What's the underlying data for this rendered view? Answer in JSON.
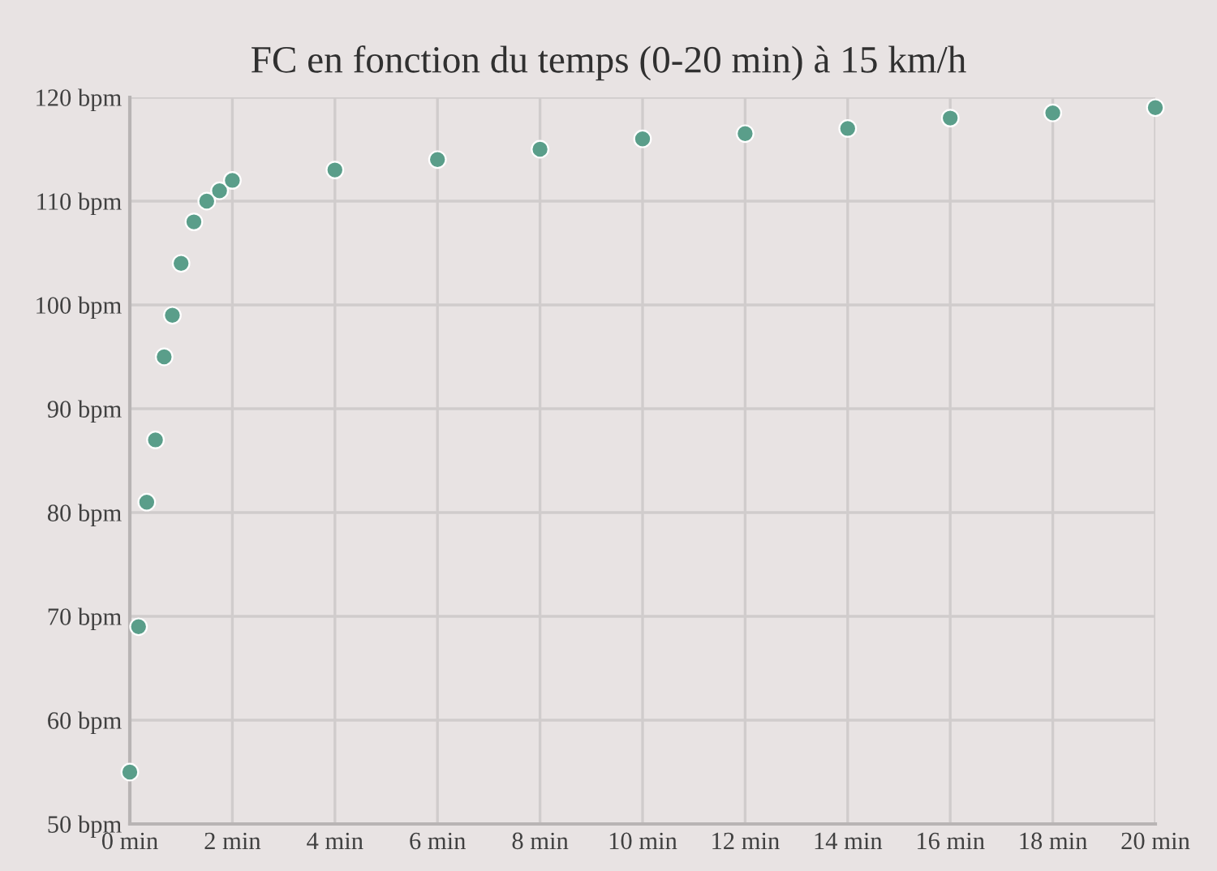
{
  "chart_data": {
    "type": "scatter",
    "title": "FC en fonction du temps (0-20 min) à 15 km/h",
    "x": [
      0,
      0.17,
      0.33,
      0.5,
      0.67,
      0.83,
      1,
      1.25,
      1.5,
      1.75,
      2,
      4,
      6,
      8,
      10,
      12,
      14,
      16,
      18,
      20
    ],
    "series": [
      {
        "color": "#5a9e8a",
        "values": [
          55,
          69,
          81,
          87,
          95,
          99,
          104,
          108,
          110,
          111,
          112,
          113,
          114,
          115,
          116,
          116.5,
          117,
          118,
          118.5,
          119
        ]
      }
    ],
    "xlim": [
      0,
      20
    ],
    "ylim": [
      50,
      120
    ],
    "xticks": [
      {
        "value": 0,
        "label": "0 min"
      },
      {
        "value": 2,
        "label": "2 min"
      },
      {
        "value": 4,
        "label": "4 min"
      },
      {
        "value": 6,
        "label": "6 min"
      },
      {
        "value": 8,
        "label": "8 min"
      },
      {
        "value": 10,
        "label": "10 min"
      },
      {
        "value": 12,
        "label": "12 min"
      },
      {
        "value": 14,
        "label": "14 min"
      },
      {
        "value": 16,
        "label": "16 min"
      },
      {
        "value": 18,
        "label": "18 min"
      },
      {
        "value": 20,
        "label": "20 min"
      }
    ],
    "yticks": [
      {
        "value": 50,
        "label": "50 bpm"
      },
      {
        "value": 60,
        "label": "60 bpm"
      },
      {
        "value": 70,
        "label": "70 bpm"
      },
      {
        "value": 80,
        "label": "80 bpm"
      },
      {
        "value": 90,
        "label": "90 bpm"
      },
      {
        "value": 100,
        "label": "100 bpm"
      },
      {
        "value": 110,
        "label": "110 bpm"
      },
      {
        "value": 120,
        "label": "120 bpm"
      }
    ],
    "grid": true,
    "marker": "circle"
  }
}
